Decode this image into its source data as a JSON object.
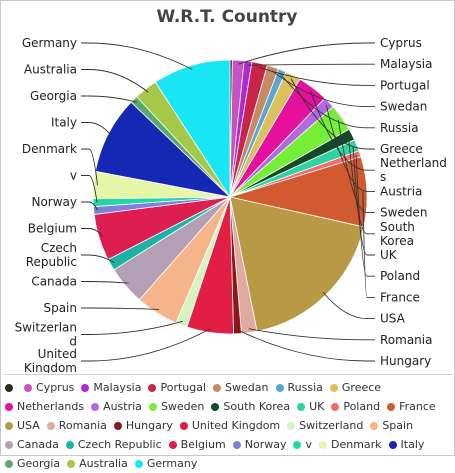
{
  "chart_data": {
    "type": "pie",
    "title": "W.R.T. Country",
    "slices": [
      {
        "label": "",
        "value": 0.3,
        "color": "#2c2c14"
      },
      {
        "label": "Cyprus",
        "value": 1.5,
        "color": "#c653c6"
      },
      {
        "label": "Malaysia",
        "value": 1.0,
        "color": "#b02ad0"
      },
      {
        "label": "Portugal",
        "value": 2.0,
        "color": "#c8244c"
      },
      {
        "label": "Swedan",
        "value": 1.5,
        "color": "#c88a64"
      },
      {
        "label": "Russia",
        "value": 1.0,
        "color": "#5ba5d4"
      },
      {
        "label": "Greece",
        "value": 2.0,
        "color": "#dcc05a"
      },
      {
        "label": "Netherlands",
        "value": 4.0,
        "color": "#e5109c"
      },
      {
        "label": "Austria",
        "value": 1.5,
        "color": "#b468e0"
      },
      {
        "label": "Sweden",
        "value": 3.5,
        "color": "#74ee36"
      },
      {
        "label": "South Korea",
        "value": 1.5,
        "color": "#124a28"
      },
      {
        "label": "UK",
        "value": 1.5,
        "color": "#2ed2a4"
      },
      {
        "label": "Poland",
        "value": 0.8,
        "color": "#f06d6d"
      },
      {
        "label": "France",
        "value": 9.0,
        "color": "#d25a30"
      },
      {
        "label": "USA",
        "value": 20.0,
        "color": "#b89a46"
      },
      {
        "label": "Romania",
        "value": 2.0,
        "color": "#e0aaa0"
      },
      {
        "label": "Hungary",
        "value": 1.0,
        "color": "#8e1616"
      },
      {
        "label": "United Kingdom",
        "value": 6.0,
        "color": "#e01e46"
      },
      {
        "label": "Switzerland",
        "value": 1.5,
        "color": "#d6f5be"
      },
      {
        "label": "Spain",
        "value": 5.5,
        "color": "#f5b48a"
      },
      {
        "label": "Canada",
        "value": 5.0,
        "color": "#b4a0b4"
      },
      {
        "label": "Czech Republic",
        "value": 1.5,
        "color": "#1ab4a4"
      },
      {
        "label": "Belgium",
        "value": 6.0,
        "color": "#dc1e50"
      },
      {
        "label": "Norway",
        "value": 1.0,
        "color": "#8080dc"
      },
      {
        "label": "v",
        "value": 1.0,
        "color": "#22d8a0"
      },
      {
        "label": "Denmark",
        "value": 3.5,
        "color": "#e6f5a8"
      },
      {
        "label": "Italy",
        "value": 10.0,
        "color": "#1428b4"
      },
      {
        "label": "Georgia",
        "value": 1.0,
        "color": "#5aaa6e"
      },
      {
        "label": "Australia",
        "value": 3.0,
        "color": "#a6c848"
      },
      {
        "label": "Germany",
        "value": 10.0,
        "color": "#18e6f5"
      }
    ],
    "right_labels": [
      {
        "lines": [
          "Cyprus"
        ],
        "slice": 1
      },
      {
        "lines": [
          "Malaysia"
        ],
        "slice": 2
      },
      {
        "lines": [
          "Portugal"
        ],
        "slice": 3
      },
      {
        "lines": [
          "Swedan"
        ],
        "slice": 4
      },
      {
        "lines": [
          "Russia"
        ],
        "slice": 5
      },
      {
        "lines": [
          "Greece"
        ],
        "slice": 6
      },
      {
        "lines": [
          "Netherland",
          "s"
        ],
        "slice": 7
      },
      {
        "lines": [
          "Austria"
        ],
        "slice": 8
      },
      {
        "lines": [
          "Sweden"
        ],
        "slice": 9
      },
      {
        "lines": [
          "South",
          "Korea"
        ],
        "slice": 10
      },
      {
        "lines": [
          "UK"
        ],
        "slice": 11
      },
      {
        "lines": [
          "Poland"
        ],
        "slice": 12
      },
      {
        "lines": [
          "France"
        ],
        "slice": 13
      },
      {
        "lines": [
          "USA"
        ],
        "slice": 14
      },
      {
        "lines": [
          "Romania"
        ],
        "slice": 15
      },
      {
        "lines": [
          "Hungary"
        ],
        "slice": 16
      }
    ],
    "left_labels": [
      {
        "lines": [
          "Germany"
        ],
        "slice": 29
      },
      {
        "lines": [
          "Australia"
        ],
        "slice": 28
      },
      {
        "lines": [
          "Georgia"
        ],
        "slice": 27
      },
      {
        "lines": [
          "Italy"
        ],
        "slice": 26
      },
      {
        "lines": [
          "Denmark"
        ],
        "slice": 25
      },
      {
        "lines": [
          "v"
        ],
        "slice": 24
      },
      {
        "lines": [
          "Norway"
        ],
        "slice": 23
      },
      {
        "lines": [
          "Belgium"
        ],
        "slice": 22
      },
      {
        "lines": [
          "Czech",
          "Republic"
        ],
        "slice": 21
      },
      {
        "lines": [
          "Canada"
        ],
        "slice": 20
      },
      {
        "lines": [
          "Spain"
        ],
        "slice": 19
      },
      {
        "lines": [
          "Switzerlan",
          "d"
        ],
        "slice": 18
      },
      {
        "lines": [
          "United",
          "Kingdom"
        ],
        "slice": 17
      }
    ],
    "legend": [
      {
        "label": "",
        "color": "#2c2c14"
      },
      {
        "label": "Cyprus",
        "color": "#c653c6"
      },
      {
        "label": "Malaysia",
        "color": "#b02ad0"
      },
      {
        "label": "Portugal",
        "color": "#c8244c"
      },
      {
        "label": "Swedan",
        "color": "#c88a64"
      },
      {
        "label": "Russia",
        "color": "#5ba5d4"
      },
      {
        "label": "Greece",
        "color": "#dcc05a"
      },
      {
        "label": "Netherlands",
        "color": "#e5109c"
      },
      {
        "label": "Austria",
        "color": "#b468e0"
      },
      {
        "label": "Sweden",
        "color": "#74ee36"
      },
      {
        "label": "South Korea",
        "color": "#124a28"
      },
      {
        "label": "UK",
        "color": "#2ed2a4"
      },
      {
        "label": "Poland",
        "color": "#f06d6d"
      },
      {
        "label": "France",
        "color": "#d25a30"
      },
      {
        "label": "USA",
        "color": "#b89a46"
      },
      {
        "label": "Romania",
        "color": "#e0aaa0"
      },
      {
        "label": "Hungary",
        "color": "#8e1616"
      },
      {
        "label": "United Kingdom",
        "color": "#e01e46"
      },
      {
        "label": "Switzerland",
        "color": "#d6f5be"
      },
      {
        "label": "Spain",
        "color": "#f5b48a"
      },
      {
        "label": "Canada",
        "color": "#b4a0b4"
      },
      {
        "label": "Czech Republic",
        "color": "#1ab4a4"
      },
      {
        "label": "Belgium",
        "color": "#dc1e50"
      },
      {
        "label": "Norway",
        "color": "#8080dc"
      },
      {
        "label": "v",
        "color": "#22d8a0"
      },
      {
        "label": "Denmark",
        "color": "#e6f5a8"
      },
      {
        "label": "Italy",
        "color": "#1428b4"
      },
      {
        "label": "Georgia",
        "color": "#5aaa6e"
      },
      {
        "label": "Australia",
        "color": "#a6c848"
      },
      {
        "label": "Germany",
        "color": "#18e6f5"
      }
    ]
  }
}
